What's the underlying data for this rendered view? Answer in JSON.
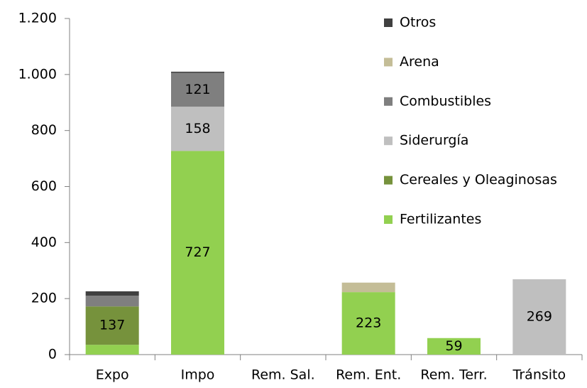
{
  "chart_data": {
    "type": "stacked_bar",
    "categories": [
      "Expo",
      "Impo",
      "Rem. Sal.",
      "Rem. Ent.",
      "Rem. Terr.",
      "Tránsito"
    ],
    "series": [
      {
        "name": "Fertilizantes",
        "color": "#92d050",
        "values": [
          35,
          727,
          null,
          223,
          59,
          null
        ],
        "value_labels": [
          null,
          "727",
          null,
          "223",
          "59",
          null
        ]
      },
      {
        "name": "Cereales y  Oleaginosas",
        "color": "#76923c",
        "values": [
          137,
          null,
          null,
          null,
          null,
          null
        ],
        "value_labels": [
          "137",
          null,
          null,
          null,
          null,
          null
        ]
      },
      {
        "name": "Siderurgía",
        "color": "#bfbfbf",
        "values": [
          null,
          158,
          null,
          null,
          null,
          269
        ],
        "value_labels": [
          null,
          "158",
          null,
          null,
          null,
          "269"
        ]
      },
      {
        "name": "Combustibles",
        "color": "#7f7f7f",
        "values": [
          38,
          121,
          null,
          null,
          null,
          null
        ],
        "value_labels": [
          null,
          "121",
          null,
          null,
          null,
          null
        ]
      },
      {
        "name": "Arena",
        "color": "#c4bd97",
        "values": [
          null,
          null,
          null,
          34,
          null,
          null
        ],
        "value_labels": [
          null,
          null,
          null,
          null,
          null,
          null
        ]
      },
      {
        "name": "Otros",
        "color": "#404040",
        "values": [
          16,
          4,
          null,
          null,
          null,
          null
        ],
        "value_labels": [
          null,
          null,
          null,
          null,
          null,
          null
        ]
      }
    ],
    "ylim": [
      0,
      1200
    ],
    "yticks": [
      0,
      200,
      400,
      600,
      800,
      {
        "value": 1000,
        "label": "1.000"
      },
      {
        "value": 1200,
        "label": "1.200"
      }
    ],
    "legend": "right"
  }
}
